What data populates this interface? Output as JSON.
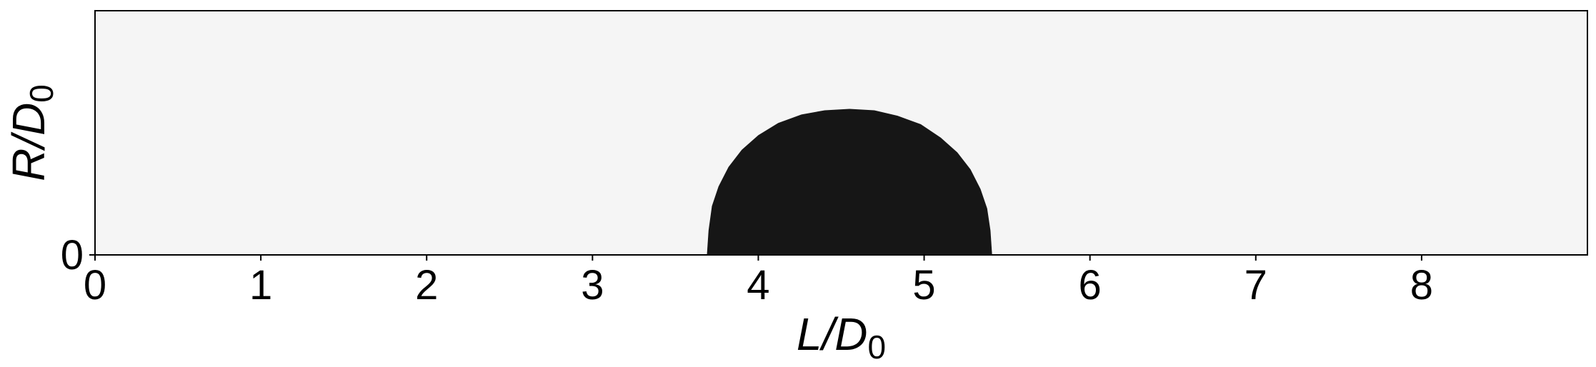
{
  "chart_data": {
    "type": "area",
    "title": "",
    "xlabel": {
      "main": "L/D",
      "sub": "0"
    },
    "ylabel": {
      "main": "R/D",
      "sub": "0"
    },
    "xlim": [
      0,
      9
    ],
    "ylim": [
      0,
      1.0
    ],
    "x_ticks": [
      "0",
      "1",
      "2",
      "3",
      "4",
      "5",
      "6",
      "7",
      "8"
    ],
    "y_ticks": [
      "0"
    ],
    "grid": false,
    "colors": {
      "background": "#f5f5f5",
      "fill": "#161616",
      "axis": "#000000"
    },
    "series": [
      {
        "x": [
          3.69,
          3.7,
          3.72,
          3.76,
          3.82,
          3.9,
          4.0,
          4.12,
          4.26,
          4.4,
          4.55,
          4.7,
          4.84,
          4.98,
          5.1,
          5.2,
          5.28,
          5.34,
          5.38,
          5.4,
          5.41
        ],
        "y": [
          0.0,
          0.1,
          0.2,
          0.28,
          0.36,
          0.43,
          0.49,
          0.54,
          0.575,
          0.592,
          0.598,
          0.592,
          0.57,
          0.535,
          0.48,
          0.42,
          0.35,
          0.27,
          0.19,
          0.1,
          0.0
        ]
      }
    ]
  }
}
